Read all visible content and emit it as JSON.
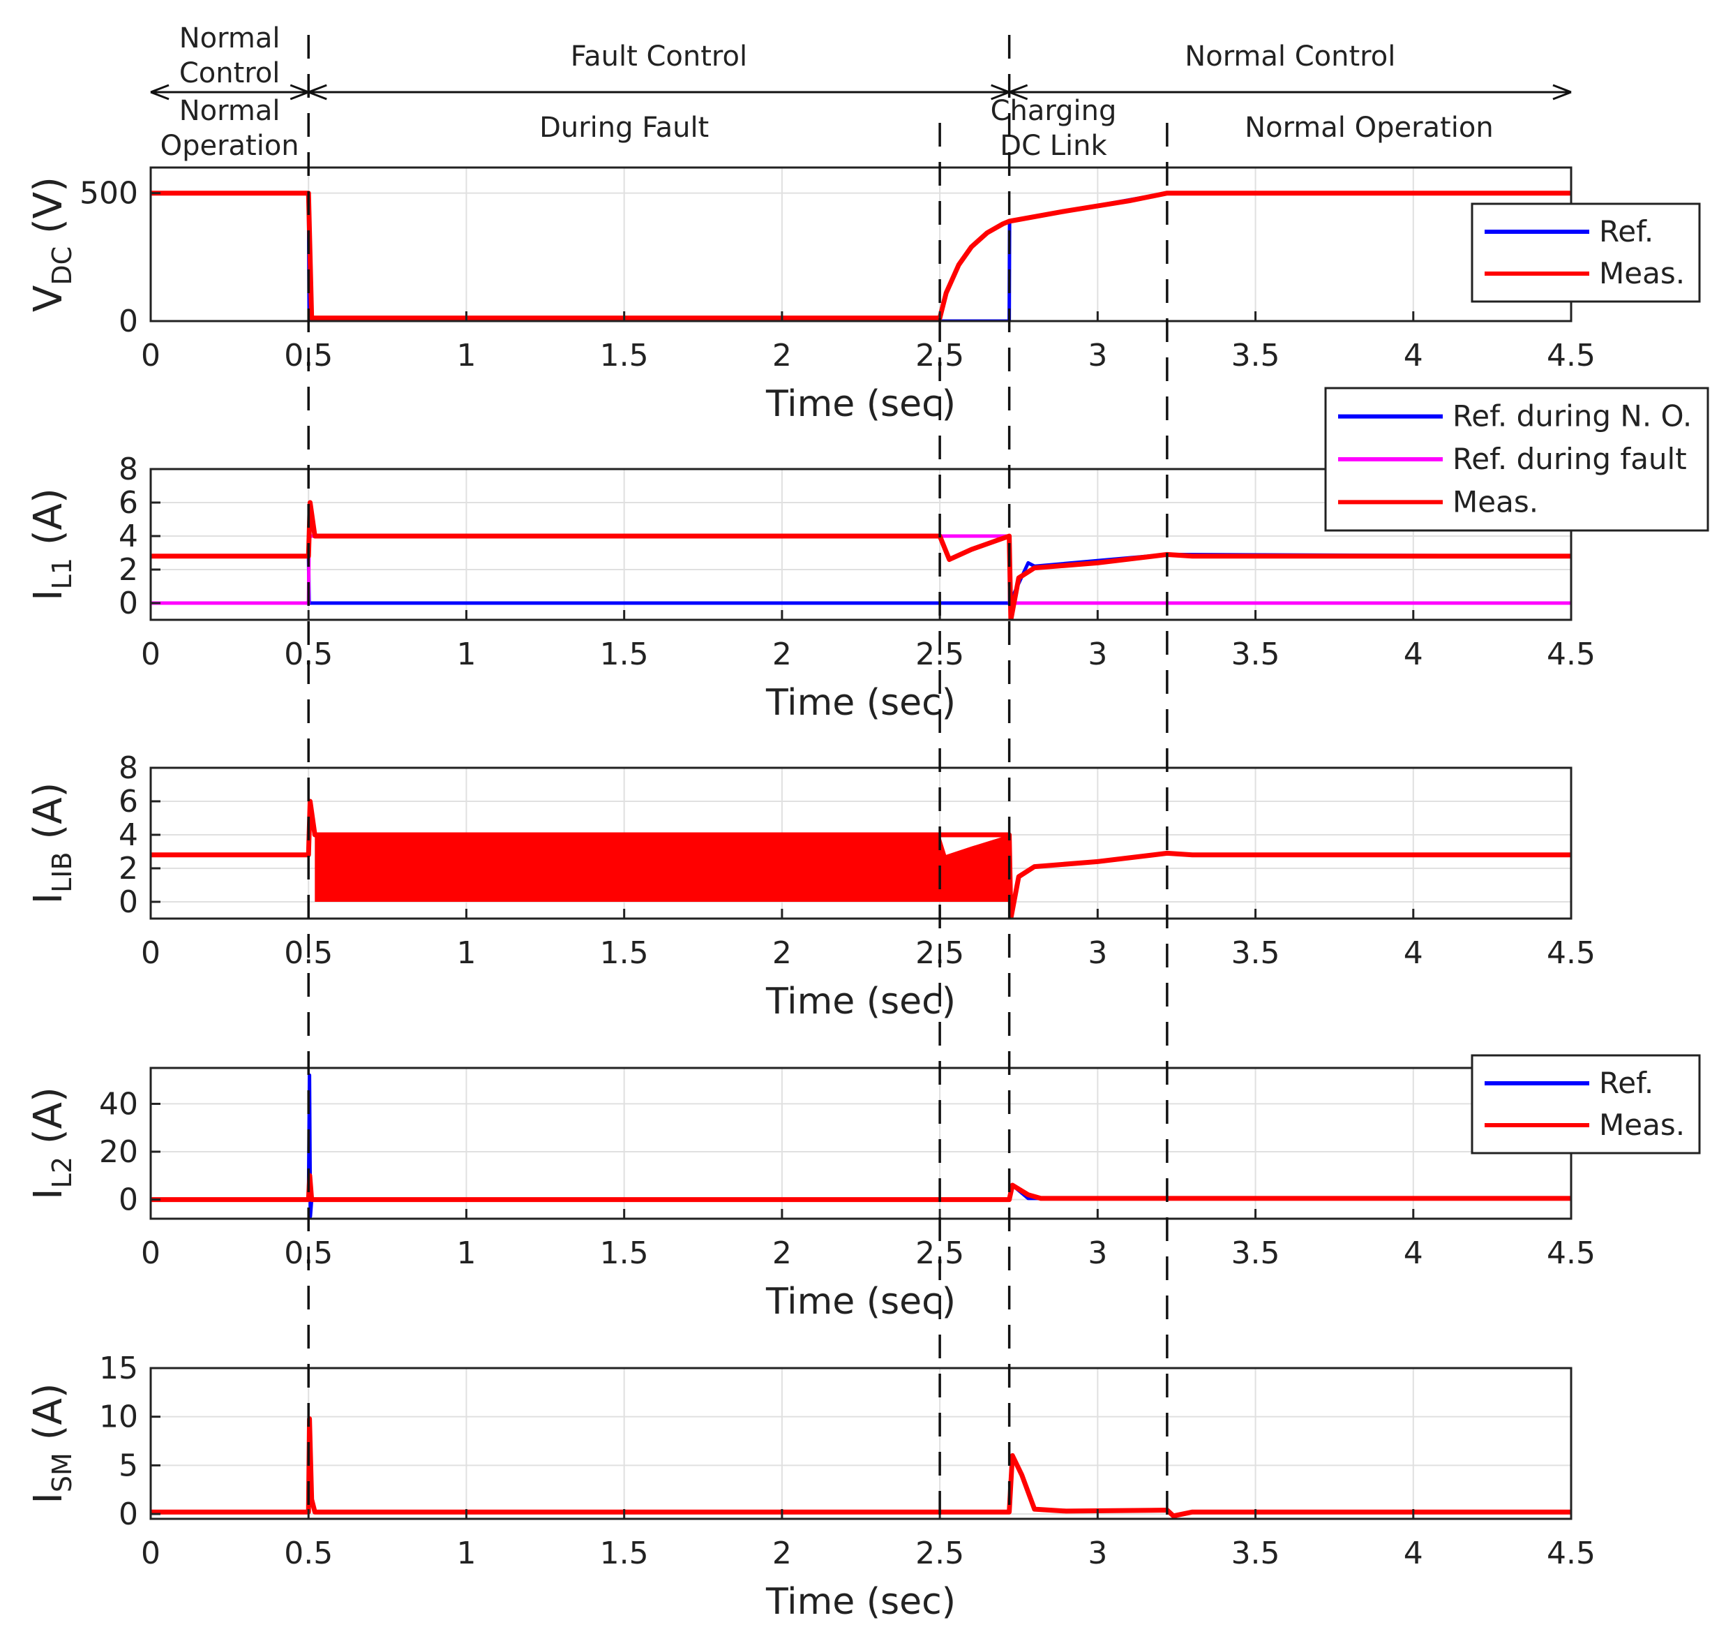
{
  "phase_annotations": {
    "top_row": [
      {
        "label_lines": [
          "Normal",
          "Control"
        ],
        "from": 0,
        "to": 0.5
      },
      {
        "label_lines": [
          "Fault Control"
        ],
        "from": 0.5,
        "to": 2.72
      },
      {
        "label_lines": [
          "Normal Control"
        ],
        "from": 2.72,
        "to": 4.5
      }
    ],
    "bottom_row": [
      {
        "label_lines": [
          "Normal",
          "Operation"
        ],
        "from": 0,
        "to": 0.5
      },
      {
        "label_lines": [
          "During Fault"
        ],
        "from": 0.5,
        "to": 2.5
      },
      {
        "label_lines": [
          "Charging",
          "DC Link"
        ],
        "from": 2.5,
        "to": 3.22
      },
      {
        "label_lines": [
          "Normal Operation"
        ],
        "from": 3.22,
        "to": 4.5
      }
    ],
    "dashed_event_lines": [
      0.5,
      2.5,
      2.72,
      3.22
    ]
  },
  "colors": {
    "ref": "#0000ff",
    "ref_fault": "#ff00ff",
    "meas": "#ff0000",
    "grid": "#e0e0e0",
    "axis": "#222222"
  },
  "chart_data": [
    {
      "type": "line",
      "id": "vdc",
      "ylabel": {
        "main": "V",
        "sub": "DC",
        "unit": " (V)"
      },
      "xlabel": "Time (sec)",
      "xlim": [
        0,
        4.5
      ],
      "ylim": [
        0,
        600
      ],
      "xticks": [
        0,
        0.5,
        1,
        1.5,
        2,
        2.5,
        3,
        3.5,
        4,
        4.5
      ],
      "xtick_labels": [
        "0",
        "0.5",
        "1",
        "1.5",
        "2",
        "2.5",
        "3",
        "3.5",
        "4",
        "4.5"
      ],
      "yticks": [
        0,
        500
      ],
      "ytick_labels": [
        "0",
        "500"
      ],
      "grid": true,
      "legend_position": "right",
      "series": [
        {
          "name": "Ref.",
          "color_key": "ref",
          "x": [
            0,
            0.5,
            0.502,
            2.72,
            2.721,
            3.22,
            4.5
          ],
          "y": [
            500,
            500,
            0,
            0,
            390,
            500,
            500
          ]
        },
        {
          "name": "Meas.",
          "color_key": "meas",
          "x": [
            0,
            0.5,
            0.51,
            2.5,
            2.52,
            2.56,
            2.6,
            2.65,
            2.7,
            2.72,
            2.9,
            3.1,
            3.22,
            4.5
          ],
          "y": [
            500,
            500,
            12,
            12,
            110,
            220,
            290,
            345,
            380,
            390,
            430,
            470,
            500,
            500
          ]
        }
      ]
    },
    {
      "type": "line",
      "id": "il1",
      "ylabel": {
        "main": "I",
        "sub": "L1",
        "unit": " (A)"
      },
      "xlabel": "Time (sec)",
      "xlim": [
        0,
        4.5
      ],
      "ylim": [
        -1,
        8
      ],
      "xticks": [
        0,
        0.5,
        1,
        1.5,
        2,
        2.5,
        3,
        3.5,
        4,
        4.5
      ],
      "xtick_labels": [
        "0",
        "0.5",
        "1",
        "1.5",
        "2",
        "2.5",
        "3",
        "3.5",
        "4",
        "4.5"
      ],
      "yticks": [
        0,
        2,
        4,
        6,
        8
      ],
      "ytick_labels": [
        "0",
        "2",
        "4",
        "6",
        "8"
      ],
      "grid": true,
      "legend_position": "top-right",
      "series": [
        {
          "name": "Ref. during N. O.",
          "color_key": "ref",
          "x": [
            0,
            0.5,
            0.502,
            2.72,
            2.721,
            2.78,
            2.8,
            3.22,
            4.5
          ],
          "y": [
            2.8,
            2.8,
            0,
            0,
            0,
            2.4,
            2.2,
            2.9,
            2.8
          ]
        },
        {
          "name": "Ref. during fault",
          "color_key": "ref_fault",
          "x": [
            0,
            0.5,
            0.502,
            2.72,
            2.721,
            4.5
          ],
          "y": [
            0,
            0,
            4,
            4,
            0,
            0
          ]
        },
        {
          "name": "Meas.",
          "color_key": "meas",
          "x": [
            0,
            0.5,
            0.505,
            0.52,
            0.55,
            2.5,
            2.53,
            2.6,
            2.72,
            2.725,
            2.75,
            2.8,
            3.0,
            3.22,
            3.3,
            4.5
          ],
          "y": [
            2.8,
            2.8,
            6.0,
            4.0,
            4.0,
            4.0,
            2.6,
            3.2,
            4.0,
            -1.0,
            1.5,
            2.1,
            2.4,
            2.9,
            2.8,
            2.8
          ]
        }
      ]
    },
    {
      "type": "line",
      "id": "ilib",
      "ylabel": {
        "main": "I",
        "sub": "LIB",
        "unit": " (A)"
      },
      "xlabel": "Time (sec)",
      "xlim": [
        0,
        4.5
      ],
      "ylim": [
        -1,
        8
      ],
      "xticks": [
        0,
        0.5,
        1,
        1.5,
        2,
        2.5,
        3,
        3.5,
        4,
        4.5
      ],
      "xtick_labels": [
        "0",
        "0.5",
        "1",
        "1.5",
        "2",
        "2.5",
        "3",
        "3.5",
        "4",
        "4.5"
      ],
      "yticks": [
        0,
        2,
        4,
        6,
        8
      ],
      "ytick_labels": [
        "0",
        "2",
        "4",
        "6",
        "8"
      ],
      "grid": true,
      "series": [
        {
          "name": "",
          "color_key": "meas",
          "x": [
            0,
            0.5,
            0.505,
            0.52,
            2.72,
            2.725,
            2.75,
            2.8,
            3.0,
            3.22,
            3.3,
            4.5
          ],
          "y": [
            2.8,
            2.8,
            6.0,
            4.0,
            4.0,
            -1.0,
            1.5,
            2.1,
            2.4,
            2.9,
            2.8,
            2.8
          ]
        }
      ],
      "bands": [
        {
          "color_key": "meas",
          "x": [
            0.52,
            2.5,
            2.52,
            2.6,
            2.72
          ],
          "upper": [
            4.0,
            4.0,
            2.8,
            3.3,
            4.0
          ],
          "lower": [
            0,
            0,
            0,
            0,
            0
          ]
        }
      ]
    },
    {
      "type": "line",
      "id": "il2",
      "ylabel": {
        "main": "I",
        "sub": "L2",
        "unit": " (A)"
      },
      "xlabel": "Time (sec)",
      "xlim": [
        0,
        4.5
      ],
      "ylim": [
        -8,
        55
      ],
      "xticks": [
        0,
        0.5,
        1,
        1.5,
        2,
        2.5,
        3,
        3.5,
        4,
        4.5
      ],
      "xtick_labels": [
        "0",
        "0.5",
        "1",
        "1.5",
        "2",
        "2.5",
        "3",
        "3.5",
        "4",
        "4.5"
      ],
      "yticks": [
        0,
        20,
        40
      ],
      "ytick_labels": [
        "0",
        "20",
        "40"
      ],
      "grid": true,
      "legend_position": "top-right",
      "series": [
        {
          "name": "Ref.",
          "color_key": "ref",
          "x": [
            0,
            0.5,
            0.503,
            0.506,
            0.51,
            2.72,
            2.73,
            2.78,
            4.5
          ],
          "y": [
            0,
            0,
            52,
            -7,
            0,
            0,
            6,
            0.5,
            0.5
          ]
        },
        {
          "name": "Meas.",
          "color_key": "meas",
          "x": [
            0,
            0.5,
            0.504,
            0.51,
            2.72,
            2.73,
            2.78,
            2.82,
            4.5
          ],
          "y": [
            0,
            0,
            10,
            0,
            0,
            6,
            2,
            0.5,
            0.5
          ]
        }
      ]
    },
    {
      "type": "line",
      "id": "ism",
      "ylabel": {
        "main": "I",
        "sub": "SM",
        "unit": " (A)"
      },
      "xlabel": "Time (sec)",
      "xlim": [
        0,
        4.5
      ],
      "ylim": [
        -0.5,
        15
      ],
      "xticks": [
        0,
        0.5,
        1,
        1.5,
        2,
        2.5,
        3,
        3.5,
        4,
        4.5
      ],
      "xtick_labels": [
        "0",
        "0.5",
        "1",
        "1.5",
        "2",
        "2.5",
        "3",
        "3.5",
        "4",
        "4.5"
      ],
      "yticks": [
        0,
        5,
        10,
        15
      ],
      "ytick_labels": [
        "0",
        "5",
        "10",
        "15"
      ],
      "grid": true,
      "series": [
        {
          "name": "",
          "color_key": "meas",
          "x": [
            0,
            0.5,
            0.503,
            0.51,
            0.52,
            2.72,
            2.73,
            2.76,
            2.8,
            2.9,
            3.22,
            3.24,
            3.3,
            4.5
          ],
          "y": [
            0.2,
            0.2,
            9.8,
            1.5,
            0.2,
            0.2,
            6.0,
            4.0,
            0.5,
            0.3,
            0.4,
            -0.2,
            0.2,
            0.2
          ]
        }
      ]
    }
  ]
}
